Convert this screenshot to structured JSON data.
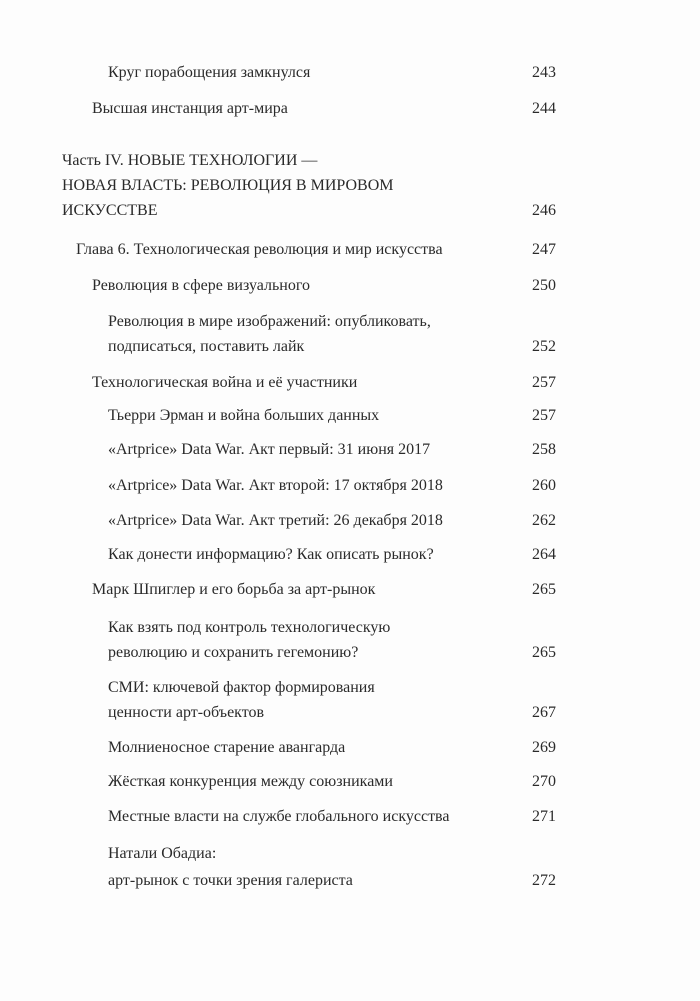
{
  "toc": {
    "entries": [
      {
        "level": 2,
        "lines": [
          "Круг порабощения замкнулся"
        ],
        "page": "243"
      },
      {
        "level": 1,
        "lines": [
          "Высшая инстанция арт-мира"
        ],
        "page": "244"
      },
      {
        "level": 0,
        "lines": [
          "Часть IV. НОВЫЕ ТЕХНОЛОГИИ —",
          "НОВАЯ ВЛАСТЬ: РЕВОЛЮЦИЯ В МИРОВОМ",
          "ИСКУССТВЕ"
        ],
        "page": "246"
      },
      {
        "level": "chapter",
        "lines": [
          "Глава 6. Технологическая революция и мир искусства"
        ],
        "page": "247"
      },
      {
        "level": 1,
        "lines": [
          "Революция в сфере визуального"
        ],
        "page": "250"
      },
      {
        "level": 2,
        "lines": [
          "Революция в мире изображений: опубликовать,",
          "подписаться, поставить лайк"
        ],
        "page": "252"
      },
      {
        "level": 1,
        "lines": [
          "Технологическая война и её участники"
        ],
        "page": "257"
      },
      {
        "level": 2,
        "lines": [
          "Тьерри Эрман и война больших данных"
        ],
        "page": "257"
      },
      {
        "level": 2,
        "lines": [
          "«Artprice» Data War. Акт первый: 31 июня 2017"
        ],
        "page": "258"
      },
      {
        "level": 2,
        "lines": [
          "«Artprice» Data War. Акт второй: 17 октября 2018"
        ],
        "page": "260"
      },
      {
        "level": 2,
        "lines": [
          "«Artprice» Data War. Акт третий: 26 декабря 2018"
        ],
        "page": "262"
      },
      {
        "level": 2,
        "lines": [
          "Как донести информацию? Как описать рынок?"
        ],
        "page": "264"
      },
      {
        "level": 1,
        "lines": [
          "Марк Шпиглер и его борьба за арт-рынок"
        ],
        "page": "265"
      },
      {
        "level": 2,
        "lines": [
          "Как взять под контроль технологическую",
          "революцию и сохранить гегемонию?"
        ],
        "page": "265"
      },
      {
        "level": 2,
        "lines": [
          "СМИ: ключевой фактор формирования",
          "ценности арт-объектов"
        ],
        "page": "267"
      },
      {
        "level": 2,
        "lines": [
          "Молниеносное старение авангарда"
        ],
        "page": "269"
      },
      {
        "level": 2,
        "lines": [
          "Жёсткая конкуренция между союзниками"
        ],
        "page": "270"
      },
      {
        "level": 2,
        "lines": [
          "Местные власти на службе глобального искусства"
        ],
        "page": "271"
      },
      {
        "level": 2,
        "lines": [
          "Натали Обадиа:",
          "арт-рынок с точки зрения галериста"
        ],
        "page": "272"
      }
    ]
  }
}
